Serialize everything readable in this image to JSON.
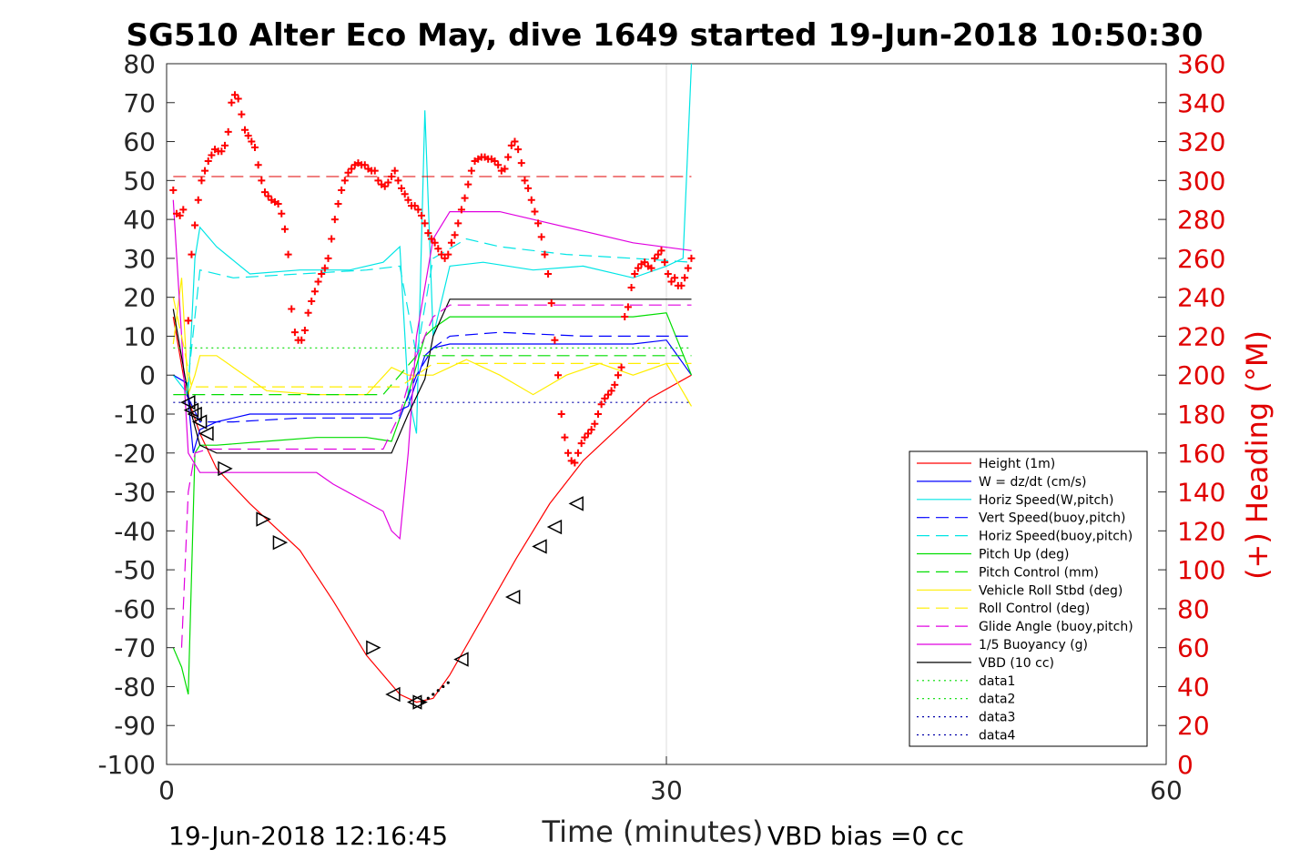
{
  "chart_data": {
    "type": "line",
    "title": "SG510 Alter Eco May, dive 1649 started 19-Jun-2018 10:50:30",
    "xlabel": "Time (minutes)",
    "ylabel_right": "(+) Heading (°M)",
    "xlim": [
      0,
      60
    ],
    "ylim_left": [
      -100,
      80
    ],
    "ylim_right": [
      0,
      360
    ],
    "x_ticks": [
      "0",
      "30",
      "60"
    ],
    "y_ticks_left": [
      "80",
      "70",
      "60",
      "50",
      "40",
      "30",
      "20",
      "10",
      "0",
      "-10",
      "-20",
      "-30",
      "-40",
      "-50",
      "-60",
      "-70",
      "-80",
      "-90",
      "-100"
    ],
    "y_ticks_right": [
      "360",
      "340",
      "320",
      "300",
      "280",
      "260",
      "240",
      "220",
      "200",
      "180",
      "160",
      "140",
      "120",
      "100",
      "80",
      "60",
      "40",
      "20",
      "0"
    ],
    "footer_left": "19-Jun-2018 12:16:45",
    "footer_right": "VBD bias =0 cc",
    "legend": [
      {
        "name": "Height (1m)",
        "color": "#ff0000",
        "style": "solid"
      },
      {
        "name": "W = dz/dt (cm/s)",
        "color": "#0000ff",
        "style": "solid"
      },
      {
        "name": "Horiz Speed(W,pitch)",
        "color": "#00e5e5",
        "style": "solid"
      },
      {
        "name": "Vert Speed(buoy,pitch)",
        "color": "#0000ff",
        "style": "dashed"
      },
      {
        "name": "Horiz Speed(buoy,pitch)",
        "color": "#00e5e5",
        "style": "dashed"
      },
      {
        "name": "Pitch Up (deg)",
        "color": "#00dd00",
        "style": "solid"
      },
      {
        "name": "Pitch Control (mm)",
        "color": "#00dd00",
        "style": "dashed"
      },
      {
        "name": "Vehicle Roll Stbd (deg)",
        "color": "#ffee00",
        "style": "solid"
      },
      {
        "name": "Roll Control (deg)",
        "color": "#ffee00",
        "style": "dashed"
      },
      {
        "name": "Glide Angle (buoy,pitch)",
        "color": "#e000e0",
        "style": "dashed"
      },
      {
        "name": "1/5 Buoyancy (g)",
        "color": "#e000e0",
        "style": "solid"
      },
      {
        "name": "VBD (10 cc)",
        "color": "#000000",
        "style": "solid"
      },
      {
        "name": "data1",
        "color": "#00dd00",
        "style": "dotted"
      },
      {
        "name": "data2",
        "color": "#00dd00",
        "style": "dotted"
      },
      {
        "name": "data3",
        "color": "#0000aa",
        "style": "dotted"
      },
      {
        "name": "data4",
        "color": "#0000aa",
        "style": "dotted"
      }
    ],
    "series": [
      {
        "name": "Height (1m)",
        "axis": "left",
        "x": [
          0.4,
          1.2,
          2.0,
          3.0,
          5,
          8,
          10,
          12,
          14,
          15,
          16,
          17,
          19,
          21,
          23,
          25,
          27,
          29,
          31.5
        ],
        "y": [
          15,
          -5,
          -15,
          -24,
          -33,
          -45,
          -58,
          -72,
          -82,
          -84,
          -83,
          -77,
          -62,
          -47,
          -33,
          -22,
          -14,
          -6,
          0
        ]
      },
      {
        "name": "W = dz/dt (cm/s)",
        "axis": "left",
        "x": [
          0.4,
          1.2,
          1.6,
          2,
          3,
          5,
          8,
          10,
          12,
          13.5,
          14.5,
          15.5,
          16,
          17,
          20,
          25,
          28,
          30,
          31.5
        ],
        "y": [
          0,
          -2,
          -20,
          -14,
          -12,
          -10,
          -10,
          -10,
          -10,
          -10,
          -8,
          5,
          7,
          8,
          8,
          8,
          8,
          9,
          0
        ]
      },
      {
        "name": "Horiz Speed(W,pitch)",
        "axis": "left",
        "x": [
          0.4,
          1.3,
          1.7,
          2,
          3,
          5,
          8,
          11,
          13,
          14,
          14.5,
          15,
          15.5,
          16,
          17,
          19,
          22,
          25,
          28,
          30,
          31,
          31.5
        ],
        "y": [
          0,
          -5,
          30,
          38,
          33,
          26,
          27,
          27,
          29,
          33,
          -5,
          -15,
          68,
          10,
          28,
          29,
          27,
          28,
          25,
          28,
          30,
          80
        ]
      },
      {
        "name": "Pitch Up (deg)",
        "axis": "left",
        "x": [
          0.4,
          0.9,
          1.3,
          1.7,
          2,
          3,
          6,
          9,
          12,
          13.5,
          14.5,
          15.5,
          16,
          17,
          20,
          24,
          28,
          30,
          31.5
        ],
        "y": [
          -70,
          -75,
          -82,
          -20,
          -18,
          -18,
          -17,
          -16,
          -16,
          -17,
          -5,
          10,
          12,
          15,
          15,
          15,
          15,
          16,
          0
        ]
      },
      {
        "name": "Vehicle Roll Stbd (deg)",
        "axis": "left",
        "x": [
          0.4,
          0.9,
          1.3,
          1.7,
          2,
          3,
          6,
          9,
          12,
          13.5,
          14.5,
          16,
          18,
          20,
          22,
          24,
          26,
          28,
          30,
          31.5
        ],
        "y": [
          8,
          25,
          -5,
          0,
          5,
          5,
          -4,
          -5,
          -5,
          2,
          0,
          0,
          4,
          0,
          -5,
          0,
          3,
          0,
          3,
          -8
        ]
      },
      {
        "name": "1/5 Buoyancy (g)",
        "axis": "left",
        "x": [
          0.4,
          0.9,
          1.3,
          2,
          5,
          9,
          10,
          13,
          13.5,
          14,
          14.5,
          15,
          16,
          17,
          20,
          25,
          28,
          31.5
        ],
        "y": [
          45,
          10,
          -20,
          -25,
          -25,
          -25,
          -28,
          -35,
          -40,
          -42,
          -20,
          10,
          35,
          42,
          42,
          37,
          34,
          32
        ]
      },
      {
        "name": "VBD (10 cc)",
        "axis": "left",
        "x": [
          0.4,
          1.5,
          2,
          3,
          8,
          12,
          13.5,
          14.5,
          15.5,
          16,
          17,
          20,
          25,
          31.5
        ],
        "y": [
          17,
          -10,
          -18,
          -20,
          -20,
          -20,
          -20,
          -10,
          -1,
          10,
          19.5,
          19.5,
          19.5,
          19.5
        ]
      },
      {
        "name": "Vert Speed(buoy,pitch)",
        "axis": "left",
        "x": [
          1.2,
          2,
          4,
          8,
          12,
          14,
          15,
          16,
          17,
          20,
          25,
          28,
          31.5
        ],
        "y": [
          -5,
          -12,
          -12,
          -11,
          -11,
          -11,
          0,
          7,
          10,
          11,
          10,
          10,
          10
        ]
      },
      {
        "name": "Horiz Speed(buoy,pitch)",
        "axis": "left",
        "x": [
          1.2,
          2,
          4,
          8,
          12,
          14,
          15,
          16,
          18,
          20,
          24,
          28,
          31.5
        ],
        "y": [
          -5,
          27,
          25,
          26,
          27,
          28,
          5,
          30,
          35,
          33,
          31,
          30,
          29
        ]
      },
      {
        "name": "Pitch Control (mm)",
        "axis": "left",
        "x": [
          0.4,
          1.5,
          3,
          8,
          13,
          15,
          17,
          20,
          25,
          31.5
        ],
        "y": [
          -5,
          -5,
          -5,
          -5,
          -5,
          5,
          5,
          5,
          5,
          5
        ]
      },
      {
        "name": "Roll Control (deg)",
        "axis": "left",
        "x": [
          0.4,
          1,
          1.5,
          3,
          6,
          9,
          12,
          14,
          16,
          20,
          24,
          28,
          31.5
        ],
        "y": [
          20,
          8,
          -3,
          -3,
          -3,
          -3,
          -3,
          -3,
          3,
          3,
          3,
          3,
          3
        ]
      },
      {
        "name": "Glide Angle (buoy,pitch)",
        "axis": "left",
        "x": [
          0.9,
          1.3,
          1.7,
          2.5,
          6,
          9,
          13,
          14,
          15,
          16,
          17,
          20,
          25,
          30,
          31.5
        ],
        "y": [
          -70,
          -30,
          -20,
          -19,
          -19,
          -19,
          -19,
          -10,
          5,
          15,
          18,
          18,
          18,
          18,
          18
        ]
      },
      {
        "name": "data1",
        "axis": "left",
        "x": [
          0.4,
          31.5
        ],
        "y": [
          7,
          7
        ]
      },
      {
        "name": "data3",
        "axis": "left",
        "x": [
          0.4,
          31.5
        ],
        "y": [
          -7,
          -7
        ]
      }
    ],
    "heading_target": 302,
    "heading_points": {
      "axis": "right",
      "x": [
        0.4,
        0.6,
        0.8,
        1.0,
        1.3,
        1.5,
        1.7,
        1.9,
        2.1,
        2.3,
        2.5,
        2.7,
        2.9,
        3.1,
        3.3,
        3.5,
        3.7,
        3.9,
        4.1,
        4.3,
        4.5,
        4.7,
        4.9,
        5.1,
        5.3,
        5.5,
        5.7,
        5.9,
        6.1,
        6.3,
        6.5,
        6.7,
        6.9,
        7.1,
        7.3,
        7.5,
        7.7,
        7.9,
        8.1,
        8.3,
        8.5,
        8.7,
        8.9,
        9.1,
        9.3,
        9.5,
        9.7,
        9.9,
        10.1,
        10.3,
        10.5,
        10.7,
        10.9,
        11.1,
        11.3,
        11.5,
        11.7,
        11.9,
        12.1,
        12.3,
        12.5,
        12.7,
        12.9,
        13.1,
        13.3,
        13.5,
        13.7,
        13.9,
        14.1,
        14.3,
        14.5,
        14.7,
        14.9,
        15.1,
        15.3,
        15.5,
        15.7,
        15.9,
        16.1,
        16.3,
        16.5,
        16.7,
        16.9,
        17.1,
        17.3,
        17.5,
        17.7,
        17.9,
        18.1,
        18.3,
        18.5,
        18.7,
        18.9,
        19.1,
        19.3,
        19.5,
        19.7,
        19.9,
        20.1,
        20.3,
        20.5,
        20.7,
        20.9,
        21.1,
        21.3,
        21.5,
        21.7,
        21.9,
        22.1,
        22.3,
        22.5,
        22.7,
        22.9,
        23.1,
        23.3,
        23.5,
        23.7,
        23.9,
        24.1,
        24.3,
        24.5,
        24.7,
        24.9,
        25.1,
        25.3,
        25.5,
        25.7,
        25.9,
        26.1,
        26.3,
        26.5,
        26.7,
        26.9,
        27.1,
        27.3,
        27.5,
        27.7,
        27.9,
        28.1,
        28.3,
        28.5,
        28.7,
        28.9,
        29.1,
        29.3,
        29.5,
        29.7,
        29.9,
        30.1,
        30.3,
        30.5,
        30.7,
        30.9,
        31.1,
        31.3,
        31.5
      ],
      "y": [
        295,
        283,
        282,
        285,
        228,
        262,
        277,
        290,
        300,
        305,
        310,
        313,
        316,
        315,
        315,
        318,
        325,
        340,
        344,
        342,
        334,
        326,
        323,
        320,
        317,
        308,
        300,
        294,
        292,
        290,
        289,
        288,
        283,
        275,
        262,
        234,
        222,
        218,
        218,
        223,
        232,
        238,
        243,
        248,
        252,
        255,
        260,
        270,
        280,
        288,
        295,
        300,
        304,
        306,
        308,
        309,
        308,
        308,
        306,
        305,
        305,
        300,
        298,
        297,
        299,
        302,
        305,
        300,
        296,
        293,
        290,
        287,
        287,
        285,
        282,
        278,
        273,
        270,
        268,
        265,
        262,
        260,
        262,
        268,
        272,
        278,
        285,
        291,
        298,
        305,
        310,
        311,
        312,
        312,
        311,
        311,
        310,
        308,
        305,
        306,
        312,
        318,
        320,
        316,
        309,
        300,
        296,
        290,
        284,
        278,
        271,
        262,
        252,
        237,
        218,
        200,
        180,
        168,
        160,
        156,
        155,
        160,
        165,
        168,
        170,
        172,
        175,
        180,
        185,
        188,
        190,
        192,
        195,
        200,
        204,
        230,
        235,
        245,
        252,
        255,
        257,
        258,
        256,
        255,
        260,
        262,
        264,
        258,
        252,
        248,
        250,
        246,
        246,
        250,
        255,
        260
      ]
    },
    "markers": {
      "left_triangles": {
        "x": [
          1.3,
          1.5,
          1.7,
          2.0,
          2.4,
          3.5,
          5.8,
          6.8,
          12.4,
          13.6,
          14.9,
          15.2,
          17.7,
          20.8,
          22.4,
          23.3,
          24.6
        ],
        "y": [
          -7,
          -9,
          -10,
          -12,
          -15,
          -24,
          -37,
          -43,
          -70,
          -82,
          -84,
          -84,
          -73,
          -57,
          -44,
          -39,
          -33
        ],
        "dir": [
          "left",
          "left",
          "left",
          "left",
          "left",
          "right",
          "right",
          "right",
          "right",
          "left",
          "left",
          "right",
          "left",
          "left",
          "left",
          "left",
          "left"
        ]
      }
    }
  }
}
